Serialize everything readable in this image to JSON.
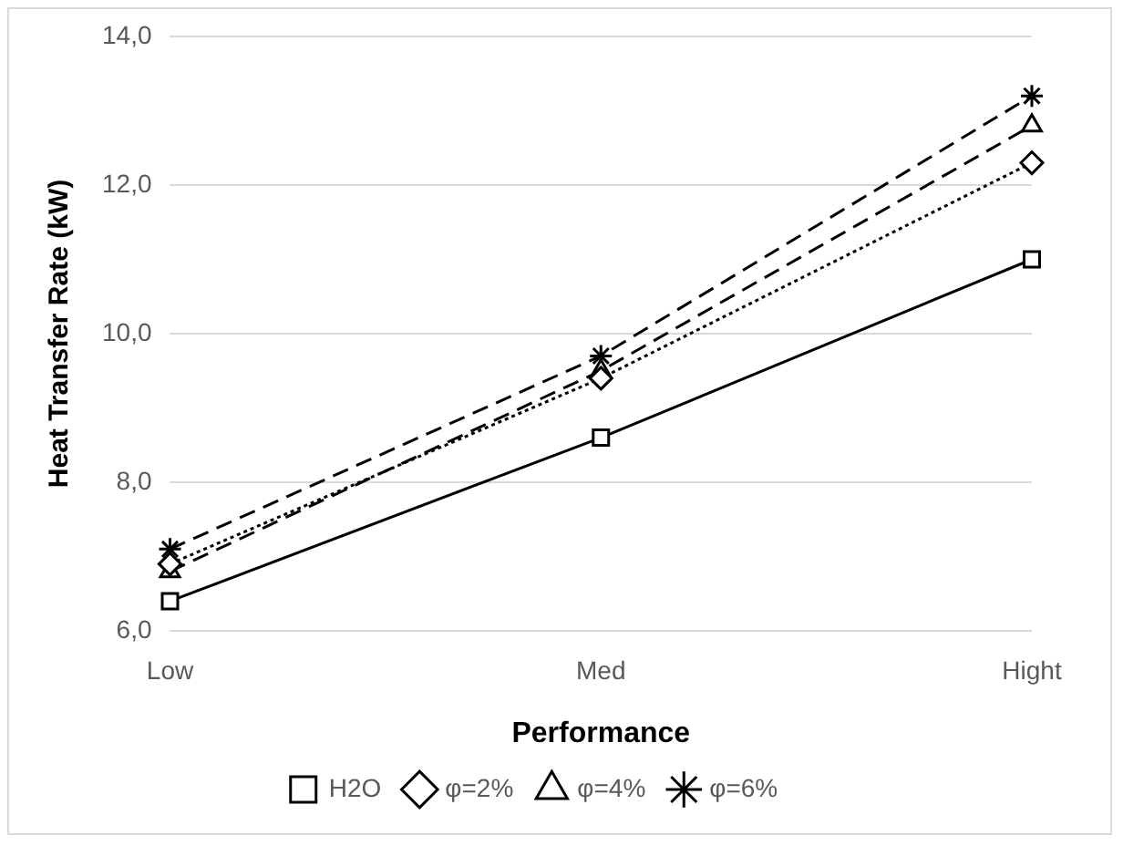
{
  "chart_data": {
    "type": "line",
    "xlabel": "Performance",
    "ylabel": "Heat Transfer Rate (kW)",
    "categories": [
      "Low",
      "Med",
      "Hight"
    ],
    "series": [
      {
        "name": "H2O",
        "color": "#000000",
        "values": [
          6.4,
          8.6,
          11.0
        ],
        "marker": "square",
        "line_style": "solid"
      },
      {
        "name": "φ=2%",
        "color": "#000000",
        "values": [
          6.9,
          9.4,
          12.3
        ],
        "marker": "diamond",
        "line_style": "dotted"
      },
      {
        "name": "φ=4%",
        "color": "#000000",
        "values": [
          6.8,
          9.5,
          12.8
        ],
        "marker": "triangle",
        "line_style": "dashed"
      },
      {
        "name": "φ=6%",
        "color": "#000000",
        "values": [
          7.1,
          9.7,
          13.2
        ],
        "marker": "cross",
        "line_style": "dashed"
      }
    ],
    "ylim": [
      6.0,
      14.0
    ],
    "yticks": [
      {
        "value": 6,
        "label": "6,0"
      },
      {
        "value": 8,
        "label": "8,0"
      },
      {
        "value": 10,
        "label": "10,0"
      },
      {
        "value": 12,
        "label": "12,0"
      },
      {
        "value": 14,
        "label": "14,0"
      }
    ],
    "grid": "y",
    "legend": "bottom"
  }
}
